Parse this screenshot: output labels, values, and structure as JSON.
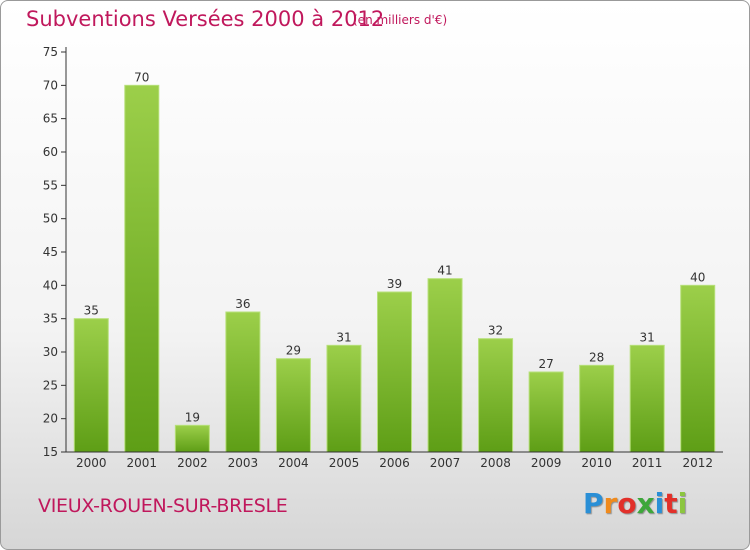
{
  "title": "Subventions Versées 2000 à 2012",
  "subtitle": "(en milliers d'€)",
  "commune": "VIEUX-ROUEN-SUR-BRESLE",
  "logo": {
    "letters": [
      "P",
      "r",
      "o",
      "x",
      "i",
      "t",
      "i"
    ],
    "colors": [
      "#2a8fd6",
      "#f08a1c",
      "#e2302a",
      "#3da73a",
      "#2a8fd6",
      "#e2302a",
      "#8cc63f"
    ]
  },
  "colors": {
    "accent": "#c0185c",
    "bar_top": "#9ccf4a",
    "bar_bottom": "#5e9e16",
    "axis": "#333333"
  },
  "chart_data": {
    "type": "bar",
    "categories": [
      "2000",
      "2001",
      "2002",
      "2003",
      "2004",
      "2005",
      "2006",
      "2007",
      "2008",
      "2009",
      "2010",
      "2011",
      "2012"
    ],
    "values": [
      35,
      70,
      19,
      36,
      29,
      31,
      39,
      41,
      32,
      27,
      28,
      31,
      40
    ],
    "data_labels": [
      "35",
      "70",
      "19",
      "36",
      "29",
      "31",
      "39",
      "41",
      "32",
      "27",
      "28",
      "31",
      "40"
    ],
    "y_ticks": [
      "15",
      "20",
      "25",
      "30",
      "35",
      "40",
      "45",
      "50",
      "55",
      "60",
      "65",
      "70",
      "75"
    ],
    "ylim": [
      15,
      75
    ],
    "grid": false
  }
}
